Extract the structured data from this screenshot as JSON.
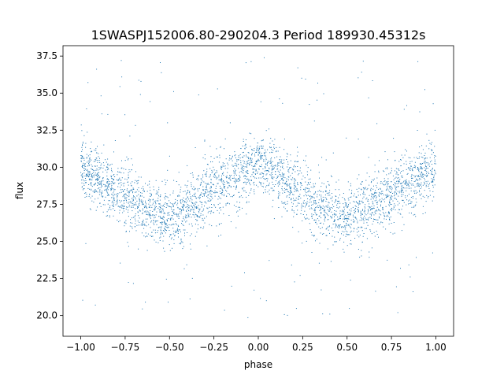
{
  "chart_data": {
    "type": "scatter",
    "title": "1SWASPJ152006.80-290204.3 Period 189930.45312s",
    "xlabel": "phase",
    "ylabel": "flux",
    "xlim": [
      -1.1,
      1.1
    ],
    "ylim": [
      18.6,
      38.2
    ],
    "x_ticks": [
      -1.0,
      -0.75,
      -0.5,
      -0.25,
      0.0,
      0.25,
      0.5,
      0.75,
      1.0
    ],
    "x_tick_labels": [
      "−1.00",
      "−0.75",
      "−0.50",
      "−0.25",
      "0.00",
      "0.25",
      "0.50",
      "0.75",
      "1.00"
    ],
    "y_ticks": [
      20.0,
      22.5,
      25.0,
      27.5,
      30.0,
      32.5,
      35.0,
      37.5
    ],
    "y_tick_labels": [
      "20.0",
      "22.5",
      "25.0",
      "27.5",
      "30.0",
      "32.5",
      "35.0",
      "37.5"
    ],
    "grid": false,
    "series": [
      {
        "color": "#1f77b4",
        "marker": "point",
        "phase_range": [
          -1.0,
          1.0
        ],
        "profile": {
          "phase": [
            -1.0,
            -0.75,
            -0.5,
            -0.25,
            0.0,
            0.25,
            0.5,
            0.75,
            1.0
          ],
          "flux_center": [
            30.0,
            28.0,
            26.4,
            28.5,
            30.3,
            28.3,
            26.4,
            28.2,
            30.0
          ],
          "flux_spread": [
            1.8,
            2.2,
            2.0,
            2.3,
            1.8,
            2.2,
            2.0,
            2.3,
            1.8
          ]
        },
        "outlier_range": [
          19.8,
          37.6
        ]
      }
    ]
  }
}
